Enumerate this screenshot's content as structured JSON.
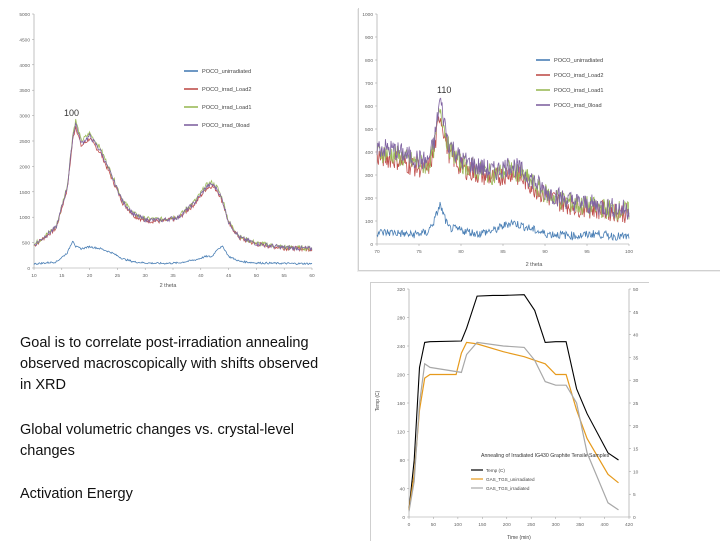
{
  "notes": {
    "goal": "Goal is to correlate post-irradiation annealing observed macroscopically with shifts observed in XRD",
    "global": "Global volumetric changes vs. crystal-level changes",
    "activation": "Activation Energy"
  },
  "chart_data": [
    {
      "type": "line",
      "title": "",
      "annotation": "100",
      "xlabel": "2 theta",
      "ylabel": "",
      "xlim": [
        10,
        60
      ],
      "ylim": [
        0,
        5000
      ],
      "x_ticks": [
        "10",
        "15",
        "20",
        "25",
        "30",
        "35",
        "40",
        "45",
        "50",
        "55",
        "60"
      ],
      "y_ticks": [
        "0",
        "500",
        "1000",
        "1500",
        "2000",
        "2500",
        "3000",
        "3500",
        "4000",
        "4500",
        "5000"
      ],
      "legend_position": "right",
      "series": [
        {
          "name": "POCO_unirradiated",
          "color": "#4a7fb5"
        },
        {
          "name": "POCO_irrad_Load2",
          "color": "#c0504d"
        },
        {
          "name": "POCO_irrad_Load1",
          "color": "#9bbb59"
        },
        {
          "name": "POCO_irrad_0load",
          "color": "#8064a2"
        }
      ],
      "x": [
        10,
        14,
        16,
        17,
        17.5,
        18.5,
        20,
        22,
        24,
        26,
        28,
        30,
        33,
        36,
        39,
        41,
        42,
        43,
        44,
        45,
        47,
        50,
        55,
        60
      ],
      "curves": {
        "irradiated": [
          450,
          800,
          1600,
          2600,
          2850,
          2450,
          2600,
          2300,
          1800,
          1300,
          1050,
          950,
          940,
          1000,
          1300,
          1600,
          1650,
          1550,
          1300,
          900,
          600,
          480,
          400,
          380
        ],
        "unirradiated": [
          80,
          120,
          300,
          550,
          420,
          380,
          420,
          380,
          300,
          180,
          120,
          100,
          90,
          100,
          160,
          230,
          220,
          380,
          420,
          230,
          130,
          100,
          90,
          85
        ]
      }
    },
    {
      "type": "line",
      "title": "",
      "annotation": "110",
      "xlabel": "2 theta",
      "ylabel": "",
      "xlim": [
        70,
        100
      ],
      "ylim": [
        0,
        1000
      ],
      "x_ticks": [
        "70",
        "75",
        "80",
        "85",
        "90",
        "95",
        "100"
      ],
      "y_ticks": [
        "0",
        "100",
        "200",
        "300",
        "400",
        "500",
        "600",
        "700",
        "800",
        "900",
        "1000"
      ],
      "legend_position": "right",
      "series": [
        {
          "name": "POCO_unirradiated",
          "color": "#4a7fb5"
        },
        {
          "name": "POCO_irrad_Load2",
          "color": "#c0504d"
        },
        {
          "name": "POCO_irrad_Load1",
          "color": "#9bbb59"
        },
        {
          "name": "POCO_irrad_0load",
          "color": "#8064a2"
        }
      ],
      "x": [
        70,
        72,
        74,
        76,
        76.8,
        77.5,
        78.5,
        80,
        82,
        84,
        86,
        88,
        90,
        92,
        94,
        96,
        98,
        100
      ],
      "curves": {
        "irradiated": [
          400,
          390,
          360,
          340,
          420,
          600,
          420,
          350,
          320,
          300,
          330,
          280,
          220,
          190,
          170,
          160,
          150,
          140
        ],
        "unirradiated": [
          50,
          50,
          40,
          50,
          100,
          170,
          70,
          60,
          45,
          60,
          95,
          70,
          45,
          40,
          35,
          45,
          35,
          30
        ]
      }
    },
    {
      "type": "line",
      "title": "Annealing of Irradiated IG430 Graphite Tensile Samples",
      "xlabel": "Time (min)",
      "ylabel": "Temp (C)",
      "xlim": [
        0,
        420
      ],
      "ylim": [
        0,
        320
      ],
      "y2lim": [
        0,
        50
      ],
      "x_ticks": [
        "0",
        "50",
        "100",
        "150",
        "200",
        "250",
        "300",
        "350",
        "400",
        "420"
      ],
      "y_ticks": [
        "0",
        "40",
        "80",
        "120",
        "160",
        "200",
        "240",
        "280",
        "320"
      ],
      "y2_ticks": [
        "0",
        "5",
        "10",
        "15",
        "20",
        "25",
        "30",
        "35",
        "40",
        "45",
        "50"
      ],
      "legend_position": "lower-center",
      "series": [
        {
          "name": "Temp (C)",
          "color": "#000000",
          "x": [
            0,
            10,
            20,
            30,
            40,
            100,
            110,
            130,
            160,
            180,
            220,
            240,
            260,
            280,
            300,
            320,
            340,
            380,
            400
          ],
          "y": [
            10,
            80,
            210,
            245,
            246,
            247,
            265,
            310,
            311,
            311,
            312,
            290,
            245,
            246,
            246,
            180,
            145,
            90,
            80
          ]
        },
        {
          "name": "GAS_TGS_unirradiated",
          "color": "#e69a1c",
          "x": [
            0,
            10,
            20,
            30,
            40,
            90,
            100,
            110,
            130,
            180,
            220,
            240,
            260,
            280,
            300,
            320,
            340,
            380,
            400
          ],
          "y": [
            10,
            60,
            150,
            195,
            200,
            200,
            230,
            245,
            243,
            232,
            225,
            220,
            215,
            200,
            200,
            150,
            110,
            60,
            48
          ]
        },
        {
          "name": "GAS_TGS_irradiated",
          "color": "#a8a8a8",
          "x": [
            0,
            10,
            20,
            30,
            40,
            100,
            110,
            130,
            180,
            220,
            240,
            260,
            280,
            300,
            320,
            340,
            380,
            400
          ],
          "y": [
            8,
            50,
            160,
            215,
            210,
            203,
            228,
            245,
            240,
            238,
            220,
            190,
            185,
            185,
            160,
            90,
            20,
            10
          ]
        }
      ]
    }
  ]
}
